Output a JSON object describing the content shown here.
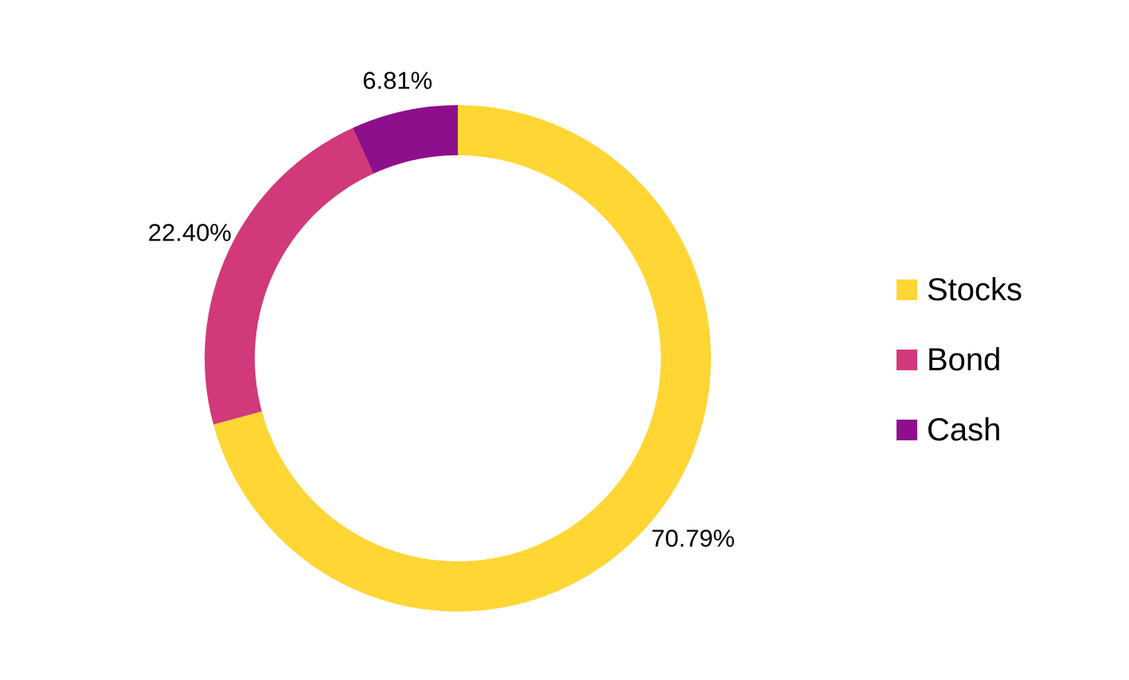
{
  "chart_data": {
    "type": "pie",
    "variant": "donut",
    "series": [
      {
        "name": "Stocks",
        "value": 70.79,
        "label": "70.79%",
        "color": "#FFD633"
      },
      {
        "name": "Bond",
        "value": 22.4,
        "label": "22.40%",
        "color": "#D1397A"
      },
      {
        "name": "Cash",
        "value": 6.81,
        "label": "6.81%",
        "color": "#8E0F8B"
      }
    ],
    "start": "12 o'clock",
    "direction": "clockwise",
    "legend": "right",
    "title": ""
  }
}
